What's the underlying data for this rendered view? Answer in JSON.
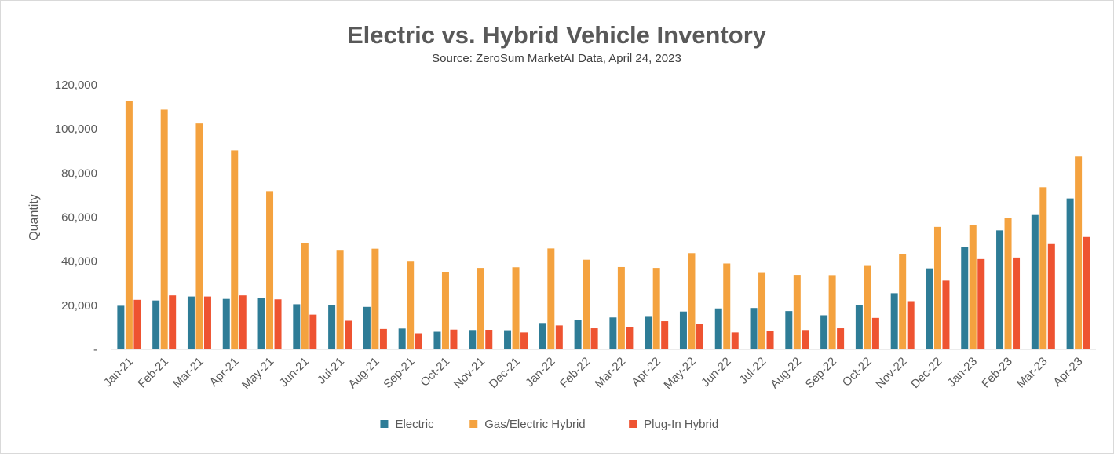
{
  "chart_data": {
    "type": "bar",
    "title": "Electric vs. Hybrid Vehicle Inventory",
    "subtitle": "Source: ZeroSum MarketAI Data, April 24, 2023",
    "xlabel": "",
    "ylabel": "Quantity",
    "ylim": [
      0,
      120000
    ],
    "yticks": [
      0,
      20000,
      40000,
      60000,
      80000,
      100000,
      120000
    ],
    "ytick_labels": [
      "-",
      "20,000",
      "40,000",
      "60,000",
      "80,000",
      "100,000",
      "120,000"
    ],
    "grid": false,
    "legend_position": "bottom",
    "categories": [
      "Jan-21",
      "Feb-21",
      "Mar-21",
      "Apr-21",
      "May-21",
      "Jun-21",
      "Jul-21",
      "Aug-21",
      "Sep-21",
      "Oct-21",
      "Nov-21",
      "Dec-21",
      "Jan-22",
      "Feb-22",
      "Mar-22",
      "Apr-22",
      "May-22",
      "Jun-22",
      "Jul-22",
      "Aug-22",
      "Sep-22",
      "Oct-22",
      "Nov-22",
      "Dec-22",
      "Jan-23",
      "Feb-23",
      "Mar-23",
      "Apr-23"
    ],
    "series": [
      {
        "name": "Electric",
        "color": "#2e7c96",
        "values": [
          19800,
          22200,
          24000,
          22900,
          23300,
          20500,
          20100,
          19300,
          9500,
          8000,
          8800,
          8700,
          12000,
          13500,
          14500,
          14800,
          17200,
          18600,
          18800,
          17400,
          15500,
          20200,
          25500,
          36800,
          46300,
          54000,
          61000,
          68500
        ]
      },
      {
        "name": "Gas/Electric Hybrid",
        "color": "#f4a23f",
        "values": [
          112800,
          108800,
          102500,
          90300,
          71800,
          48200,
          44800,
          45700,
          39800,
          35200,
          37000,
          37300,
          45800,
          40700,
          37400,
          37000,
          43700,
          39000,
          34700,
          33800,
          33700,
          37900,
          43100,
          55600,
          56500,
          59800,
          73600,
          87500
        ]
      },
      {
        "name": "Plug-In Hybrid",
        "color": "#ee5331",
        "values": [
          22500,
          24500,
          24000,
          24500,
          22700,
          15800,
          13000,
          9300,
          7300,
          9000,
          8900,
          7700,
          10900,
          9600,
          10000,
          12800,
          11400,
          7700,
          8500,
          8800,
          9600,
          14300,
          21900,
          31200,
          41000,
          41700,
          47800,
          51000
        ]
      }
    ]
  }
}
